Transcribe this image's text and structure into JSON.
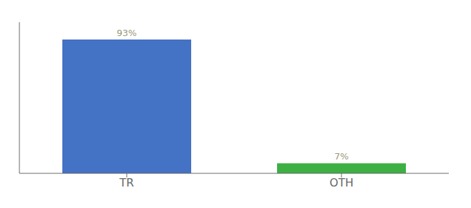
{
  "chart_data": {
    "type": "bar",
    "categories": [
      "TR",
      "OTH"
    ],
    "values": [
      93,
      7
    ],
    "value_labels": [
      "93%",
      "7%"
    ],
    "colors": [
      "#4472c4",
      "#3cb043"
    ],
    "ylim": [
      0,
      105
    ],
    "data_labels": true,
    "tick_labels": "x",
    "grid": false
  }
}
